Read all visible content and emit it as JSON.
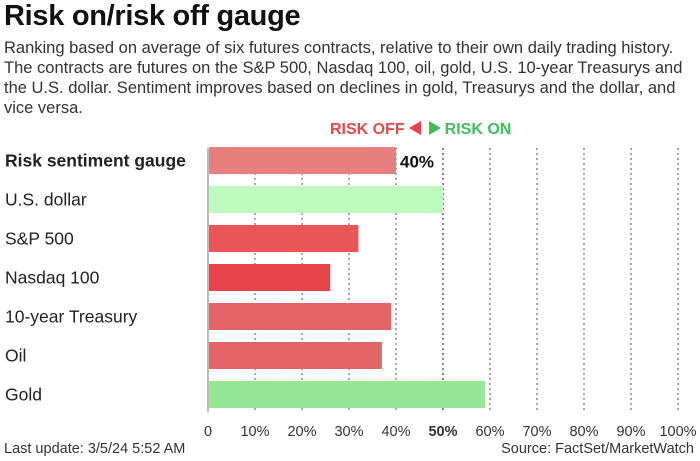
{
  "title": "Risk on/risk off gauge",
  "subtitle": "Ranking based on average of six futures contracts, relative to their own daily trading history. The contracts are futures on the S&P 500, Nasdaq 100, oil, gold, U.S. 10-year Treasurys and the U.S. dollar. Sentiment improves based on declines in gold, Treasurys and the dollar, and vice versa.",
  "legend": {
    "risk_off": "RISK OFF",
    "risk_on": "RISK ON",
    "risk_off_color": "#e8474a",
    "risk_on_color": "#3fbf5b"
  },
  "footer": {
    "last_update": "Last update: 3/5/24 5:52 AM",
    "source": "Source: FactSet/MarketWatch"
  },
  "chart_data": {
    "type": "bar",
    "orientation": "horizontal",
    "categories": [
      "Risk sentiment gauge",
      "U.S. dollar",
      "S&P 500",
      "Nasdaq 100",
      "10-year Treasury",
      "Oil",
      "Gold"
    ],
    "values": [
      40,
      50,
      32,
      26,
      39,
      37,
      59
    ],
    "bar_colors": [
      "#e87f7f",
      "#bdfbbd",
      "#ea5557",
      "#e6434a",
      "#e36466",
      "#e36466",
      "#95e695"
    ],
    "value_labels": [
      "40%",
      "",
      "",
      "",
      "",
      "",
      ""
    ],
    "bold_categories": [
      "Risk sentiment gauge"
    ],
    "xlim": [
      0,
      100
    ],
    "ticks": [
      "0",
      "10%",
      "20%",
      "30%",
      "40%",
      "50%",
      "60%",
      "70%",
      "80%",
      "90%",
      "100%"
    ],
    "bold_tick": "50%",
    "grid": "vertical dotted",
    "midline": 50
  }
}
